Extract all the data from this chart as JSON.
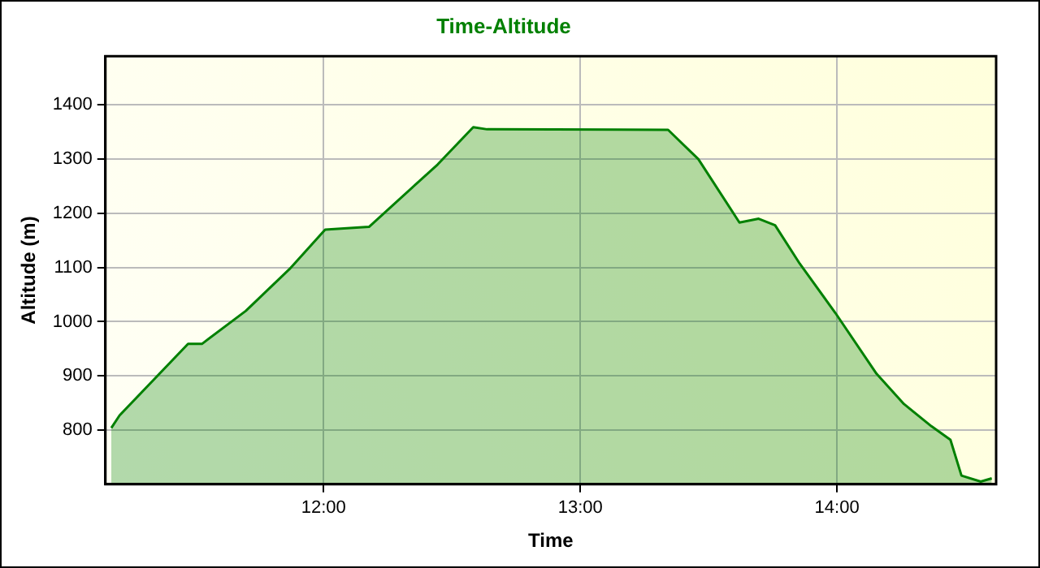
{
  "chart_data": {
    "type": "area",
    "title": "Time-Altitude",
    "xlabel": "Time",
    "ylabel": "Altitude (m)",
    "xlim": [
      11.15,
      14.62
    ],
    "ylim": [
      700,
      1490
    ],
    "xticks": [
      {
        "value": 12,
        "label": "12:00"
      },
      {
        "value": 13,
        "label": "13:00"
      },
      {
        "value": 14,
        "label": "14:00"
      }
    ],
    "yticks": [
      800,
      900,
      1000,
      1100,
      1200,
      1300,
      1400
    ],
    "grid": true,
    "legend": false,
    "marker": "none",
    "line_style": "solid",
    "series": [
      {
        "color": "#008000",
        "x": [
          11.173,
          11.205,
          11.472,
          11.526,
          11.697,
          11.867,
          12.006,
          12.177,
          12.444,
          12.583,
          12.637,
          13.342,
          13.46,
          13.62,
          13.695,
          13.759,
          13.855,
          13.994,
          14.154,
          14.261,
          14.368,
          14.442,
          14.485,
          14.56,
          14.603
        ],
        "values": [
          804,
          827,
          959,
          959,
          1020,
          1097,
          1170,
          1175,
          1290,
          1359,
          1355,
          1354,
          1300,
          1183,
          1190,
          1178,
          1107,
          1016,
          904,
          848,
          807,
          782,
          716,
          705,
          711
        ]
      }
    ]
  }
}
